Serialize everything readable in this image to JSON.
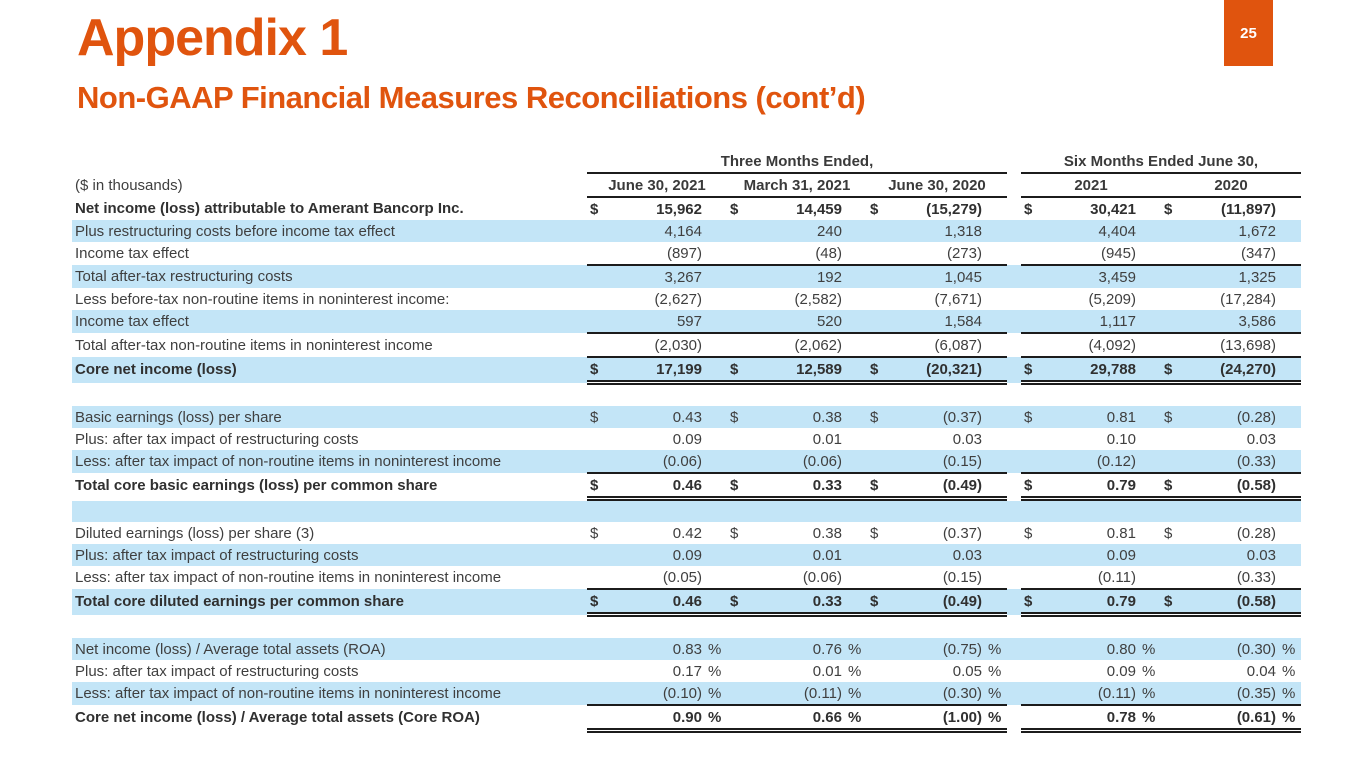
{
  "page": {
    "number": "25"
  },
  "header": {
    "title": "Appendix 1",
    "subtitle": "Non-GAAP Financial Measures Reconciliations (cont’d)"
  },
  "colors": {
    "accent": "#E0540E",
    "row_highlight": "#C3E5F7"
  },
  "table": {
    "units_label": "($ in thousands)",
    "group_headers": [
      {
        "label": "Three Months Ended,",
        "span": 3
      },
      {
        "label": "Six Months Ended June 30,",
        "span": 2
      }
    ],
    "column_headers": [
      "June 30, 2021",
      "March 31, 2021",
      "June 30, 2020",
      "2021",
      "2020"
    ],
    "rows": [
      {
        "label": "Net income (loss) attributable to Amerant Bancorp Inc.",
        "bold": true,
        "highlight": false,
        "dollar": true,
        "percent": false,
        "values": [
          "15,962",
          "14,459",
          "(15,279)",
          "30,421",
          "(11,897)"
        ],
        "border_bottom": "none"
      },
      {
        "label": "Plus restructuring costs before income tax effect",
        "bold": false,
        "highlight": true,
        "dollar": false,
        "percent": false,
        "values": [
          "4,164",
          "240",
          "1,318",
          "4,404",
          "1,672"
        ],
        "border_bottom": "none"
      },
      {
        "label": "Income tax effect",
        "bold": false,
        "highlight": false,
        "dollar": false,
        "percent": false,
        "values": [
          "(897)",
          "(48)",
          "(273)",
          "(945)",
          "(347)"
        ],
        "border_bottom": "single"
      },
      {
        "label": "Total after-tax restructuring costs",
        "bold": false,
        "highlight": true,
        "dollar": false,
        "percent": false,
        "values": [
          "3,267",
          "192",
          "1,045",
          "3,459",
          "1,325"
        ],
        "border_bottom": "none"
      },
      {
        "label": "Less before-tax non-routine items in noninterest income:",
        "bold": false,
        "highlight": false,
        "dollar": false,
        "percent": false,
        "values": [
          "(2,627)",
          "(2,582)",
          "(7,671)",
          "(5,209)",
          "(17,284)"
        ],
        "border_bottom": "none"
      },
      {
        "label": "Income tax effect",
        "bold": false,
        "highlight": true,
        "dollar": false,
        "percent": false,
        "values": [
          "597",
          "520",
          "1,584",
          "1,117",
          "3,586"
        ],
        "border_bottom": "single"
      },
      {
        "label": "Total after-tax non-routine items in noninterest income",
        "bold": false,
        "highlight": false,
        "dollar": false,
        "percent": false,
        "values": [
          "(2,030)",
          "(2,062)",
          "(6,087)",
          "(4,092)",
          "(13,698)"
        ],
        "border_bottom": "single"
      },
      {
        "label": "Core net income (loss)",
        "bold": true,
        "highlight": true,
        "dollar": true,
        "percent": false,
        "values": [
          "17,199",
          "12,589",
          "(20,321)",
          "29,788",
          "(24,270)"
        ],
        "border_bottom": "double"
      },
      {
        "spacer": true,
        "highlight": false
      },
      {
        "label": "Basic earnings (loss) per share",
        "bold": false,
        "highlight": true,
        "dollar": true,
        "percent": false,
        "values": [
          "0.43",
          "0.38",
          "(0.37)",
          "0.81",
          "(0.28)"
        ],
        "border_bottom": "none"
      },
      {
        "label": "Plus: after tax impact of restructuring costs",
        "bold": false,
        "highlight": false,
        "dollar": false,
        "percent": false,
        "values": [
          "0.09",
          "0.01",
          "0.03",
          "0.10",
          "0.03"
        ],
        "border_bottom": "none"
      },
      {
        "label": "Less: after tax impact of non-routine items in noninterest income",
        "bold": false,
        "highlight": true,
        "dollar": false,
        "percent": false,
        "values": [
          "(0.06)",
          "(0.06)",
          "(0.15)",
          "(0.12)",
          "(0.33)"
        ],
        "border_bottom": "single"
      },
      {
        "label": "Total core basic earnings (loss) per common share",
        "bold": true,
        "highlight": false,
        "dollar": true,
        "percent": false,
        "values": [
          "0.46",
          "0.33",
          "(0.49)",
          "0.79",
          "(0.58)"
        ],
        "border_bottom": "double"
      },
      {
        "spacer": true,
        "highlight": true
      },
      {
        "label": "Diluted earnings (loss) per share (3)",
        "bold": false,
        "highlight": false,
        "dollar": true,
        "percent": false,
        "values": [
          "0.42",
          "0.38",
          "(0.37)",
          "0.81",
          "(0.28)"
        ],
        "border_bottom": "none"
      },
      {
        "label": "Plus: after tax impact of restructuring costs",
        "bold": false,
        "highlight": true,
        "dollar": false,
        "percent": false,
        "values": [
          "0.09",
          "0.01",
          "0.03",
          "0.09",
          "0.03"
        ],
        "border_bottom": "none"
      },
      {
        "label": "Less: after tax impact of non-routine items in noninterest income",
        "bold": false,
        "highlight": false,
        "dollar": false,
        "percent": false,
        "values": [
          "(0.05)",
          "(0.06)",
          "(0.15)",
          "(0.11)",
          "(0.33)"
        ],
        "border_bottom": "single"
      },
      {
        "label": "Total core diluted earnings per common share",
        "bold": true,
        "highlight": true,
        "dollar": true,
        "percent": false,
        "values": [
          "0.46",
          "0.33",
          "(0.49)",
          "0.79",
          "(0.58)"
        ],
        "border_bottom": "double"
      },
      {
        "spacer": true,
        "highlight": false
      },
      {
        "label": "Net income (loss) / Average total assets (ROA)",
        "bold": false,
        "highlight": true,
        "dollar": false,
        "percent": true,
        "values": [
          "0.83",
          "0.76",
          "(0.75)",
          "0.80",
          "(0.30)"
        ],
        "border_bottom": "none"
      },
      {
        "label": "Plus: after tax impact of restructuring costs",
        "bold": false,
        "highlight": false,
        "dollar": false,
        "percent": true,
        "values": [
          "0.17",
          "0.01",
          "0.05",
          "0.09",
          "0.04"
        ],
        "border_bottom": "none"
      },
      {
        "label": "Less: after tax impact of non-routine items in noninterest income",
        "bold": false,
        "highlight": true,
        "dollar": false,
        "percent": true,
        "values": [
          "(0.10)",
          "(0.11)",
          "(0.30)",
          "(0.11)",
          "(0.35)"
        ],
        "border_bottom": "single"
      },
      {
        "label": "Core net income (loss) / Average total assets (Core ROA)",
        "bold": true,
        "highlight": false,
        "dollar": false,
        "percent": true,
        "values": [
          "0.90",
          "0.66",
          "(1.00)",
          "0.78",
          "(0.61)"
        ],
        "border_bottom": "double"
      }
    ]
  }
}
